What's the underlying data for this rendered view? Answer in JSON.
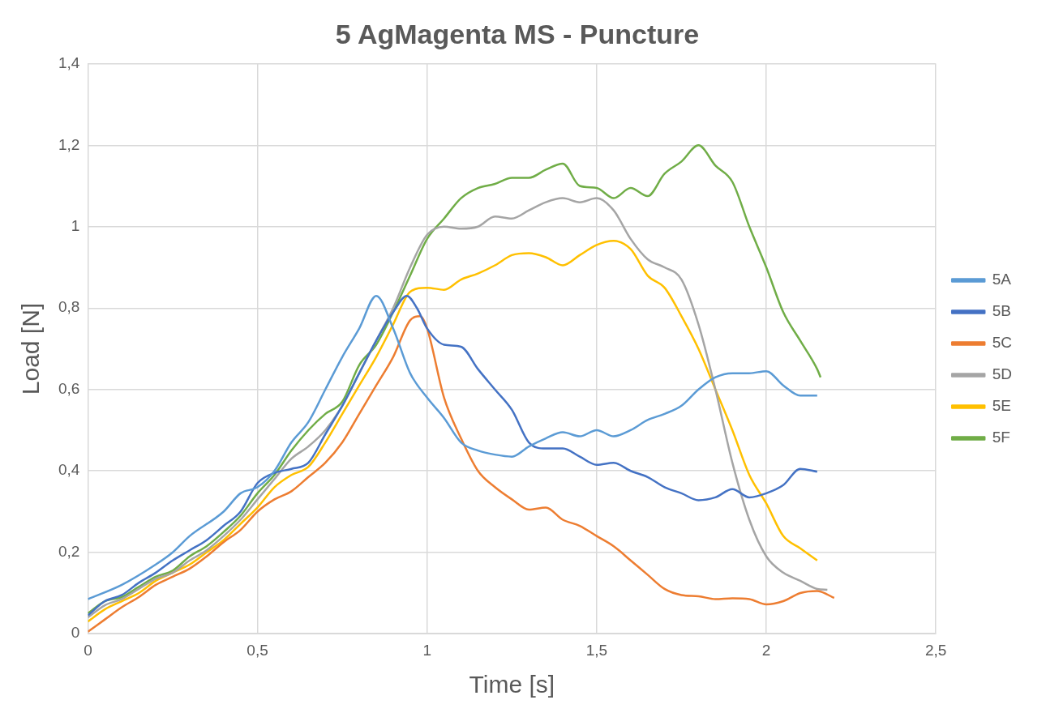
{
  "chart_data": {
    "type": "line",
    "title": "5 AgMagenta MS - Puncture",
    "xlabel": "Time [s]",
    "ylabel": "Load [N]",
    "xlim": [
      0,
      2.5
    ],
    "xticks": [
      0,
      {
        "value": 0.5,
        "label": "0,5"
      },
      1,
      {
        "value": 1.5,
        "label": "1,5"
      },
      2,
      {
        "value": 2.5,
        "label": "2,5"
      }
    ],
    "ylim": [
      0,
      1.4
    ],
    "yticks": [
      0,
      {
        "value": 0.2,
        "label": "0,2"
      },
      {
        "value": 0.4,
        "label": "0,4"
      },
      {
        "value": 0.6,
        "label": "0,6"
      },
      {
        "value": 0.8,
        "label": "0,8"
      },
      1,
      {
        "value": 1.2,
        "label": "1,2"
      },
      {
        "value": 1.4,
        "label": "1,4"
      }
    ],
    "grid": true,
    "legend": "right",
    "marker": "none",
    "line_style": "solid",
    "series": [
      {
        "name": "5A",
        "color": "#5b9bd5",
        "x": [
          0,
          0.1,
          0.2,
          0.25,
          0.3,
          0.4,
          0.45,
          0.5,
          0.55,
          0.6,
          0.65,
          0.7,
          0.75,
          0.8,
          0.85,
          0.9,
          0.95,
          1,
          1.05,
          1.1,
          1.15,
          1.2,
          1.25,
          1.3,
          1.35,
          1.4,
          1.45,
          1.5,
          1.55,
          1.6,
          1.65,
          1.7,
          1.75,
          1.8,
          1.85,
          1.9,
          1.95,
          2,
          2.05,
          2.1,
          2.15
        ],
        "values": [
          0.085,
          0.12,
          0.17,
          0.2,
          0.24,
          0.3,
          0.345,
          0.36,
          0.4,
          0.47,
          0.52,
          0.6,
          0.68,
          0.75,
          0.83,
          0.75,
          0.64,
          0.58,
          0.53,
          0.47,
          0.45,
          0.44,
          0.435,
          0.46,
          0.48,
          0.495,
          0.485,
          0.5,
          0.485,
          0.5,
          0.525,
          0.54,
          0.56,
          0.6,
          0.63,
          0.64,
          0.64,
          0.645,
          0.61,
          0.585,
          0.585
        ]
      },
      {
        "name": "5B",
        "color": "#4472c4",
        "x": [
          0,
          0.05,
          0.1,
          0.15,
          0.2,
          0.25,
          0.3,
          0.35,
          0.4,
          0.45,
          0.5,
          0.55,
          0.6,
          0.65,
          0.7,
          0.75,
          0.8,
          0.85,
          0.9,
          0.94,
          0.97,
          1,
          1.05,
          1.1,
          1.15,
          1.2,
          1.25,
          1.3,
          1.35,
          1.4,
          1.45,
          1.5,
          1.55,
          1.6,
          1.65,
          1.7,
          1.75,
          1.8,
          1.85,
          1.9,
          1.95,
          2,
          2.05,
          2.1,
          2.15
        ],
        "values": [
          0.045,
          0.08,
          0.095,
          0.125,
          0.15,
          0.18,
          0.205,
          0.23,
          0.265,
          0.3,
          0.37,
          0.395,
          0.405,
          0.42,
          0.49,
          0.56,
          0.64,
          0.72,
          0.79,
          0.83,
          0.8,
          0.75,
          0.71,
          0.705,
          0.65,
          0.6,
          0.55,
          0.47,
          0.455,
          0.455,
          0.435,
          0.415,
          0.42,
          0.4,
          0.385,
          0.36,
          0.345,
          0.328,
          0.335,
          0.355,
          0.335,
          0.345,
          0.365,
          0.405,
          0.398
        ]
      },
      {
        "name": "5C",
        "color": "#ed7d31",
        "x": [
          0,
          0.05,
          0.1,
          0.15,
          0.2,
          0.25,
          0.3,
          0.35,
          0.4,
          0.45,
          0.5,
          0.55,
          0.6,
          0.65,
          0.7,
          0.75,
          0.8,
          0.85,
          0.9,
          0.95,
          0.98,
          1,
          1.05,
          1.1,
          1.15,
          1.2,
          1.25,
          1.3,
          1.35,
          1.4,
          1.45,
          1.5,
          1.55,
          1.6,
          1.65,
          1.7,
          1.75,
          1.8,
          1.85,
          1.9,
          1.95,
          2,
          2.05,
          2.1,
          2.15,
          2.2
        ],
        "values": [
          0.005,
          0.035,
          0.065,
          0.09,
          0.12,
          0.14,
          0.16,
          0.19,
          0.225,
          0.255,
          0.3,
          0.33,
          0.35,
          0.385,
          0.42,
          0.47,
          0.54,
          0.61,
          0.68,
          0.77,
          0.78,
          0.75,
          0.58,
          0.48,
          0.4,
          0.36,
          0.33,
          0.305,
          0.31,
          0.28,
          0.265,
          0.24,
          0.215,
          0.18,
          0.145,
          0.11,
          0.095,
          0.092,
          0.085,
          0.087,
          0.085,
          0.072,
          0.08,
          0.1,
          0.105,
          0.088
        ]
      },
      {
        "name": "5D",
        "color": "#a5a5a5",
        "x": [
          0,
          0.05,
          0.1,
          0.15,
          0.2,
          0.25,
          0.3,
          0.35,
          0.4,
          0.45,
          0.5,
          0.55,
          0.6,
          0.65,
          0.7,
          0.75,
          0.8,
          0.85,
          0.9,
          0.95,
          1,
          1.05,
          1.1,
          1.15,
          1.2,
          1.25,
          1.3,
          1.35,
          1.4,
          1.45,
          1.5,
          1.55,
          1.6,
          1.65,
          1.7,
          1.75,
          1.8,
          1.85,
          1.9,
          1.95,
          2,
          2.05,
          2.1,
          2.15,
          2.18
        ],
        "values": [
          0.04,
          0.07,
          0.085,
          0.11,
          0.135,
          0.15,
          0.18,
          0.205,
          0.24,
          0.28,
          0.33,
          0.38,
          0.43,
          0.46,
          0.5,
          0.56,
          0.64,
          0.72,
          0.8,
          0.9,
          0.98,
          1,
          0.995,
          1,
          1.025,
          1.02,
          1.04,
          1.06,
          1.07,
          1.06,
          1.07,
          1.04,
          0.97,
          0.92,
          0.9,
          0.87,
          0.76,
          0.6,
          0.42,
          0.28,
          0.19,
          0.15,
          0.13,
          0.11,
          0.108
        ]
      },
      {
        "name": "5E",
        "color": "#ffc000",
        "x": [
          0,
          0.05,
          0.1,
          0.15,
          0.2,
          0.25,
          0.3,
          0.35,
          0.4,
          0.45,
          0.5,
          0.55,
          0.6,
          0.65,
          0.7,
          0.75,
          0.8,
          0.85,
          0.9,
          0.95,
          1,
          1.05,
          1.1,
          1.15,
          1.2,
          1.25,
          1.3,
          1.35,
          1.4,
          1.45,
          1.5,
          1.55,
          1.6,
          1.65,
          1.7,
          1.75,
          1.8,
          1.85,
          1.9,
          1.95,
          2,
          2.05,
          2.1,
          2.15
        ],
        "values": [
          0.03,
          0.06,
          0.08,
          0.1,
          0.13,
          0.15,
          0.17,
          0.2,
          0.23,
          0.27,
          0.31,
          0.36,
          0.39,
          0.41,
          0.47,
          0.54,
          0.61,
          0.68,
          0.76,
          0.84,
          0.85,
          0.845,
          0.87,
          0.885,
          0.905,
          0.93,
          0.935,
          0.925,
          0.905,
          0.93,
          0.955,
          0.965,
          0.945,
          0.88,
          0.85,
          0.78,
          0.7,
          0.6,
          0.5,
          0.39,
          0.32,
          0.24,
          0.21,
          0.18
        ]
      },
      {
        "name": "5F",
        "color": "#70ad47",
        "x": [
          0,
          0.05,
          0.1,
          0.15,
          0.2,
          0.25,
          0.3,
          0.35,
          0.4,
          0.45,
          0.5,
          0.55,
          0.6,
          0.65,
          0.7,
          0.75,
          0.8,
          0.85,
          0.9,
          0.95,
          1,
          1.05,
          1.1,
          1.15,
          1.2,
          1.25,
          1.3,
          1.35,
          1.4,
          1.45,
          1.5,
          1.55,
          1.6,
          1.65,
          1.7,
          1.75,
          1.8,
          1.85,
          1.9,
          1.95,
          2,
          2.05,
          2.1,
          2.15,
          2.16
        ],
        "values": [
          0.05,
          0.08,
          0.09,
          0.115,
          0.14,
          0.155,
          0.19,
          0.215,
          0.25,
          0.29,
          0.345,
          0.39,
          0.45,
          0.5,
          0.54,
          0.57,
          0.66,
          0.71,
          0.79,
          0.88,
          0.97,
          1.02,
          1.07,
          1.095,
          1.105,
          1.12,
          1.12,
          1.14,
          1.155,
          1.1,
          1.095,
          1.07,
          1.095,
          1.075,
          1.13,
          1.16,
          1.2,
          1.15,
          1.11,
          1,
          0.9,
          0.79,
          0.72,
          0.65,
          0.63
        ]
      }
    ]
  }
}
